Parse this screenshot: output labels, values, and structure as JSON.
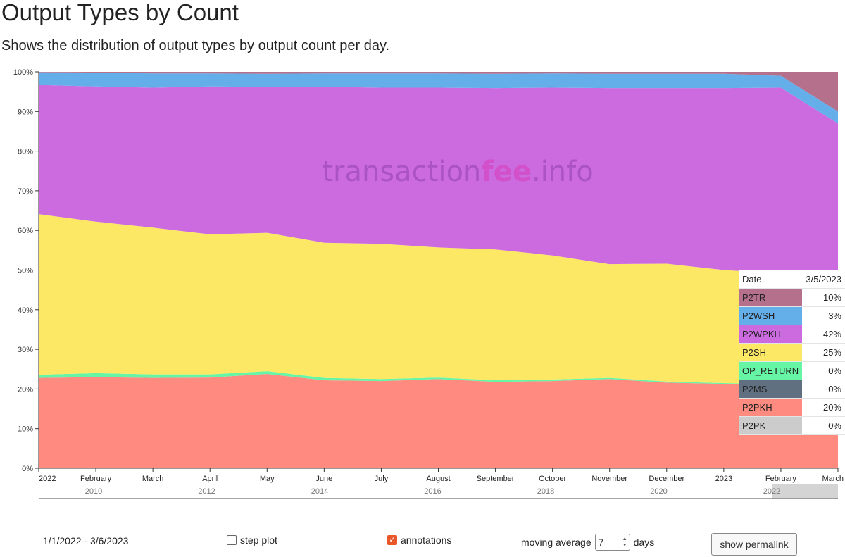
{
  "page": {
    "title": "Output Types by Count",
    "subtitle": "Shows the distribution of output types by output count per day."
  },
  "watermark": {
    "part1": "transaction",
    "part2": "fee",
    "part3": ".info",
    "color": "#a54fc0",
    "accent": "#d24bc4"
  },
  "chart_data": {
    "type": "area",
    "stacked": true,
    "normalized": true,
    "ylim": [
      0,
      100
    ],
    "y_ticks": [
      "0%",
      "10%",
      "20%",
      "30%",
      "40%",
      "50%",
      "60%",
      "70%",
      "80%",
      "90%",
      "100%"
    ],
    "x_ticks": [
      "2022",
      "February",
      "March",
      "April",
      "May",
      "June",
      "July",
      "August",
      "September",
      "October",
      "November",
      "December",
      "2023",
      "February",
      "March"
    ],
    "navigator_ticks": [
      "2010",
      "2012",
      "2014",
      "2016",
      "2018",
      "2020",
      "2022"
    ],
    "x": [
      "2022-01-01",
      "2022-02-01",
      "2022-03-01",
      "2022-04-01",
      "2022-05-01",
      "2022-06-01",
      "2022-07-01",
      "2022-08-01",
      "2022-09-01",
      "2022-10-01",
      "2022-11-01",
      "2022-12-01",
      "2023-01-01",
      "2023-02-01",
      "2023-03-06"
    ],
    "series": [
      {
        "name": "P2PK",
        "color": "#cccccc",
        "values": [
          0,
          0,
          0,
          0,
          0,
          0,
          0,
          0,
          0,
          0,
          0,
          0,
          0,
          0,
          0
        ]
      },
      {
        "name": "P2PKH",
        "color": "#ff8a80",
        "values": [
          22.8,
          23.0,
          22.8,
          22.9,
          23.8,
          22.2,
          22.0,
          22.5,
          21.8,
          22.0,
          22.5,
          21.6,
          21.3,
          21.0,
          20.0
        ]
      },
      {
        "name": "P2MS",
        "color": "#607080",
        "values": [
          0,
          0,
          0,
          0,
          0,
          0,
          0,
          0,
          0,
          0,
          0,
          0,
          0,
          0,
          0
        ]
      },
      {
        "name": "OP_RETURN",
        "color": "#66f5a5",
        "values": [
          0.8,
          1.0,
          0.9,
          0.8,
          0.7,
          0.6,
          0.5,
          0.4,
          0.4,
          0.4,
          0.3,
          0.3,
          0.2,
          0.2,
          0.2
        ]
      },
      {
        "name": "P2SH",
        "color": "#fde866",
        "values": [
          40.5,
          38.2,
          37.0,
          35.3,
          34.9,
          34.1,
          34.1,
          32.8,
          33.0,
          31.3,
          28.7,
          29.7,
          28.5,
          28.0,
          25.0
        ]
      },
      {
        "name": "P2WPKH",
        "color": "#cc6be0",
        "values": [
          32.6,
          34.1,
          35.3,
          37.3,
          36.8,
          39.3,
          39.4,
          40.3,
          40.7,
          42.3,
          44.4,
          44.3,
          45.9,
          46.8,
          41.8
        ]
      },
      {
        "name": "P2WSH",
        "color": "#64aeea",
        "values": [
          3.2,
          3.5,
          3.6,
          3.3,
          3.3,
          3.4,
          3.6,
          3.6,
          3.6,
          3.6,
          3.6,
          3.6,
          3.6,
          3.0,
          3.0
        ]
      },
      {
        "name": "P2TR",
        "color": "#b5708c",
        "values": [
          0.1,
          0.2,
          0.4,
          0.4,
          0.5,
          0.4,
          0.4,
          0.4,
          0.5,
          0.4,
          0.5,
          0.5,
          0.5,
          1.0,
          10.0
        ]
      }
    ]
  },
  "tooltip": {
    "date_label": "Date",
    "date": "3/5/2023",
    "rows": [
      {
        "name": "P2TR",
        "value": "10%",
        "color": "#b5708c"
      },
      {
        "name": "P2WSH",
        "value": "3%",
        "color": "#64aeea"
      },
      {
        "name": "P2WPKH",
        "value": "42%",
        "color": "#cc6be0"
      },
      {
        "name": "P2SH",
        "value": "25%",
        "color": "#fde866"
      },
      {
        "name": "OP_RETURN",
        "value": "0%",
        "color": "#66f5a5"
      },
      {
        "name": "P2MS",
        "value": "0%",
        "color": "#607080"
      },
      {
        "name": "P2PKH",
        "value": "20%",
        "color": "#ff8a80"
      },
      {
        "name": "P2PK",
        "value": "0%",
        "color": "#cccccc"
      }
    ]
  },
  "controls": {
    "date_range": "1/1/2022 - 3/6/2023",
    "step_plot_label": "step plot",
    "step_plot_checked": false,
    "annotations_label": "annotations",
    "annotations_checked": true,
    "moving_average_label": "moving average",
    "moving_average_value": "7",
    "days_label": "days",
    "permalink_label": "show permalink"
  }
}
